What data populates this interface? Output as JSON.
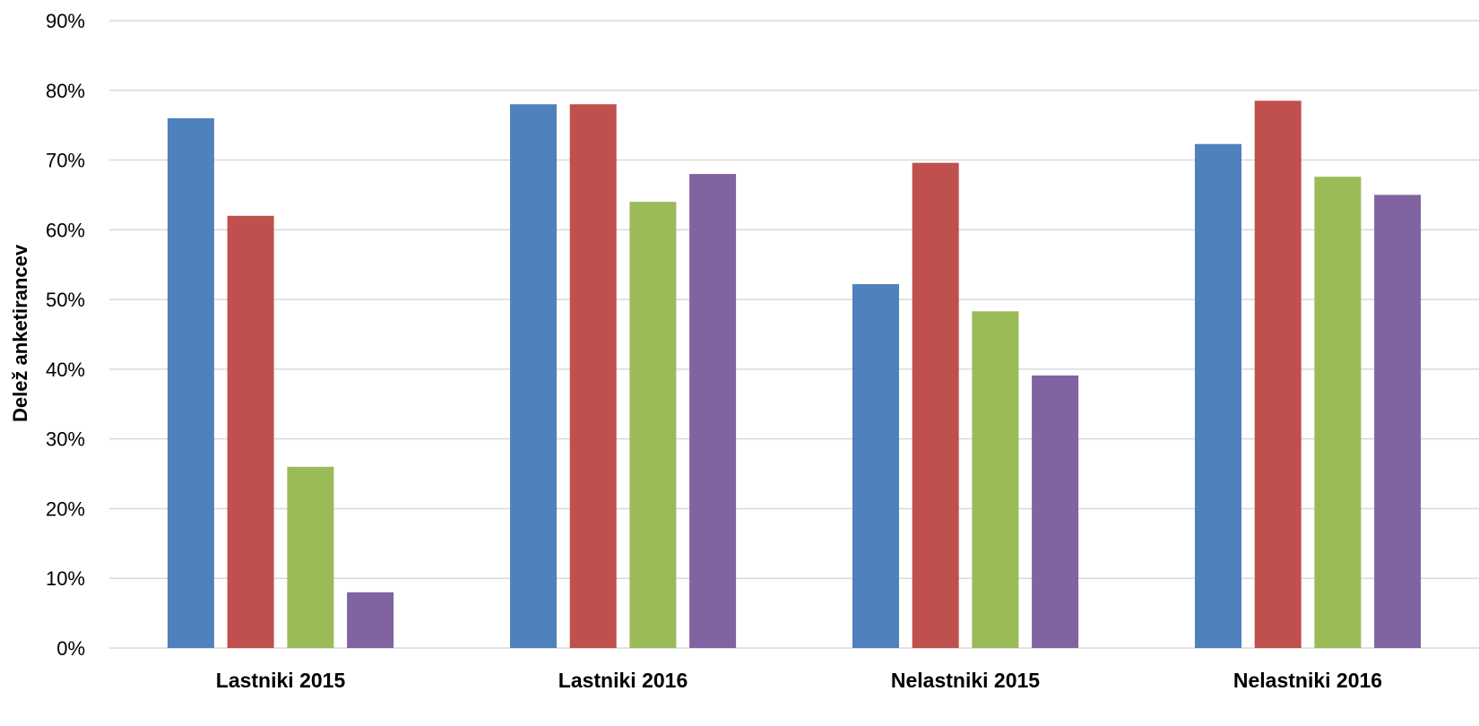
{
  "chart_data": {
    "type": "bar",
    "categories": [
      "Lastniki 2015",
      "Lastniki 2016",
      "Nelastniki 2015",
      "Nelastniki 2016"
    ],
    "series": [
      {
        "color": "#4F81BD",
        "values": [
          76,
          78,
          52.2,
          72.3
        ]
      },
      {
        "color": "#C0504D",
        "values": [
          62,
          78,
          69.6,
          78.5
        ]
      },
      {
        "color": "#9BBB59",
        "values": [
          26,
          64,
          48.3,
          67.6
        ]
      },
      {
        "color": "#8064A2",
        "values": [
          8,
          68,
          39.1,
          65
        ]
      }
    ],
    "title": "",
    "xlabel": "",
    "ylabel": "Delež anketirancev",
    "ylim": [
      0,
      90
    ],
    "yticks": [
      0,
      10,
      20,
      30,
      40,
      50,
      60,
      70,
      80,
      90
    ],
    "ytick_labels": [
      "0%",
      "10%",
      "20%",
      "30%",
      "40%",
      "50%",
      "60%",
      "70%",
      "80%",
      "90%"
    ],
    "grid": true,
    "gridline_color": "#D9D9D9",
    "legend": "none"
  }
}
